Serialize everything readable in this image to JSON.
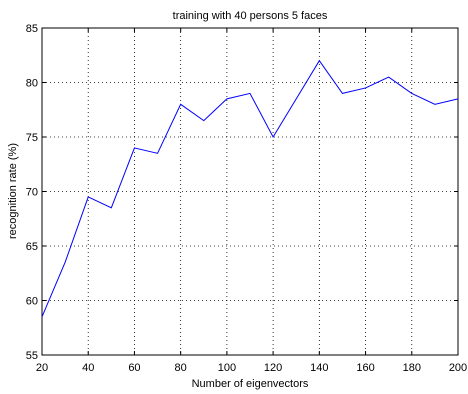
{
  "chart_data": {
    "type": "line",
    "title": "training with 40 persons 5 faces",
    "xlabel": "Number of eigenvectors",
    "ylabel": "recognition rate (%)",
    "xlim": [
      20,
      200
    ],
    "ylim": [
      55,
      85
    ],
    "xticks": [
      20,
      40,
      60,
      80,
      100,
      120,
      140,
      160,
      180,
      200
    ],
    "yticks": [
      55,
      60,
      65,
      70,
      75,
      80,
      85
    ],
    "grid": true,
    "line_color": "#0000ff",
    "series": [
      {
        "x": [
          20,
          30,
          40,
          50,
          60,
          70,
          80,
          90,
          100,
          110,
          120,
          130,
          140,
          150,
          160,
          170,
          180,
          190,
          200
        ],
        "values": [
          58.5,
          63.5,
          69.5,
          68.5,
          74,
          73.5,
          78,
          76.5,
          78.5,
          79,
          75,
          78.5,
          82,
          79,
          79.5,
          80.5,
          79,
          78,
          78.5
        ]
      }
    ]
  }
}
